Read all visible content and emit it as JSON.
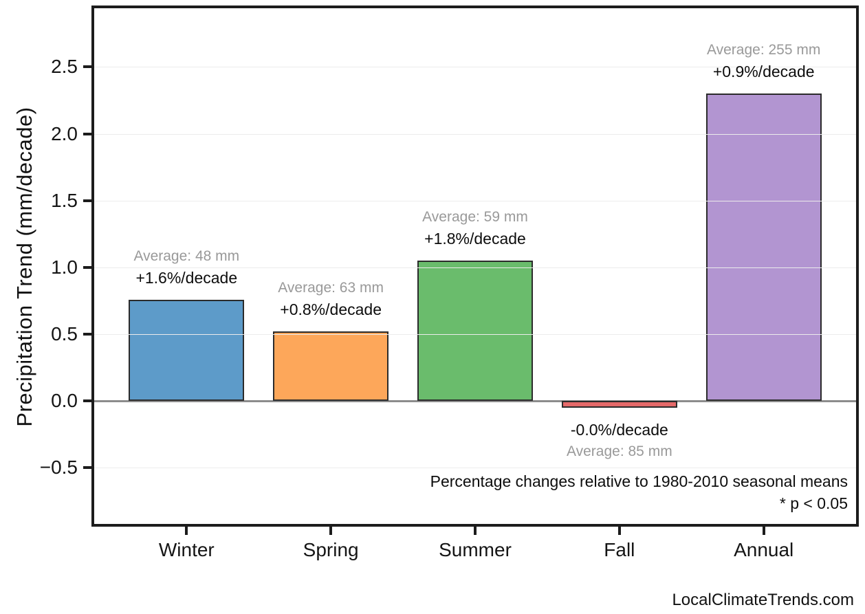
{
  "footer": {
    "watermark": "LocalClimateTrends.com"
  },
  "chart_data": {
    "type": "bar",
    "title": "",
    "xlabel": "",
    "ylabel": "Precipitation Trend (mm/decade)",
    "categories": [
      "Winter",
      "Spring",
      "Summer",
      "Fall",
      "Annual"
    ],
    "values": [
      0.76,
      0.52,
      1.05,
      -0.05,
      2.3
    ],
    "bar_colors": [
      "#5d9bc9",
      "#fda75a",
      "#6abc6c",
      "#e56a6a",
      "#b295d1"
    ],
    "bar_edge_color": "#2b2b2b",
    "ylim": [
      -0.92,
      2.94
    ],
    "yticks": [
      -0.5,
      0.0,
      0.5,
      1.0,
      1.5,
      2.0,
      2.5
    ],
    "ytick_labels": [
      "−0.5",
      "0.0",
      "0.5",
      "1.0",
      "1.5",
      "2.0",
      "2.5"
    ],
    "xlim": [
      -0.64,
      4.64
    ],
    "bar_width": 0.8,
    "grid": "horizontal",
    "zero_line": true,
    "legend": "none",
    "annotations": [
      {
        "category": "Winter",
        "average": "Average: 48 mm",
        "trend": "+1.6%/decade",
        "placement": "above"
      },
      {
        "category": "Spring",
        "average": "Average: 63 mm",
        "trend": "+0.8%/decade",
        "placement": "above"
      },
      {
        "category": "Summer",
        "average": "Average: 59 mm",
        "trend": "+1.8%/decade",
        "placement": "above"
      },
      {
        "category": "Fall",
        "average": "Average: 85 mm",
        "trend": "-0.0%/decade",
        "placement": "below"
      },
      {
        "category": "Annual",
        "average": "Average: 255 mm",
        "trend": "+0.9%/decade",
        "placement": "above"
      }
    ],
    "notes": [
      "Percentage changes relative to 1980-2010 seasonal means",
      "* p < 0.05"
    ]
  }
}
